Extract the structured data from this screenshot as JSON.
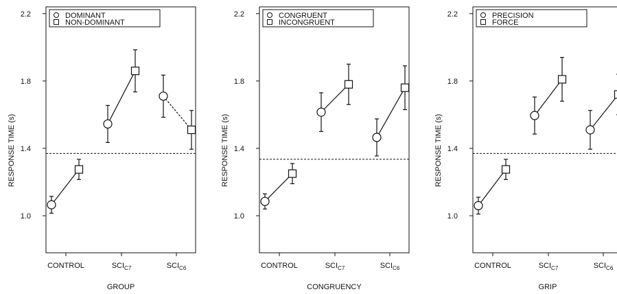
{
  "chart_data": [
    {
      "type": "scatter",
      "xlabel": "GROUP",
      "ylabel": "RESPONSE TIME (s)",
      "ylim": [
        0.78,
        2.24
      ],
      "yticks": [
        1.0,
        1.4,
        1.8,
        2.2
      ],
      "groups": [
        {
          "base": "CONTROL",
          "sub": ""
        },
        {
          "base": "SCI",
          "sub": "C7"
        },
        {
          "base": "SCI",
          "sub": "C6"
        }
      ],
      "series": [
        {
          "name": "DOMINANT",
          "marker": "circle",
          "values": [
            1.065,
            1.545,
            1.71
          ],
          "err": [
            0.05,
            0.11,
            0.125
          ]
        },
        {
          "name": "NON-DOMINANT",
          "marker": "square",
          "values": [
            1.275,
            1.86,
            1.51
          ],
          "err": [
            0.06,
            0.125,
            0.115
          ]
        }
      ],
      "connector_styles": [
        "solid",
        "solid",
        "dashed"
      ],
      "reference_line": 1.37
    },
    {
      "type": "scatter",
      "xlabel": "CONGRUENCY",
      "ylabel": "RESPONSE TIME (s)",
      "ylim": [
        0.78,
        2.24
      ],
      "yticks": [
        1.0,
        1.4,
        1.8,
        2.2
      ],
      "groups": [
        {
          "base": "CONTROL",
          "sub": ""
        },
        {
          "base": "SCI",
          "sub": "C7"
        },
        {
          "base": "SCI",
          "sub": "C6"
        }
      ],
      "series": [
        {
          "name": "CONGRUENT",
          "marker": "circle",
          "values": [
            1.085,
            1.615,
            1.465
          ],
          "err": [
            0.045,
            0.115,
            0.11
          ]
        },
        {
          "name": "INCONGRUENT",
          "marker": "square",
          "values": [
            1.25,
            1.78,
            1.76
          ],
          "err": [
            0.06,
            0.12,
            0.13
          ]
        }
      ],
      "connector_styles": [
        "solid",
        "solid",
        "solid"
      ],
      "reference_line": 1.335
    },
    {
      "type": "scatter",
      "xlabel": "GRIP",
      "ylabel": "RESPONSE TIME (s)",
      "ylim": [
        0.78,
        2.24
      ],
      "yticks": [
        1.0,
        1.4,
        1.8,
        2.2
      ],
      "groups": [
        {
          "base": "CONTROL",
          "sub": ""
        },
        {
          "base": "SCI",
          "sub": "C7"
        },
        {
          "base": "SCI",
          "sub": "C6"
        }
      ],
      "series": [
        {
          "name": "PRECISION",
          "marker": "circle",
          "values": [
            1.06,
            1.595,
            1.51
          ],
          "err": [
            0.05,
            0.11,
            0.115
          ]
        },
        {
          "name": "FORCE",
          "marker": "square",
          "values": [
            1.275,
            1.81,
            1.72
          ],
          "err": [
            0.06,
            0.13,
            0.12
          ]
        }
      ],
      "connector_styles": [
        "solid",
        "solid",
        "solid"
      ],
      "reference_line": 1.37
    }
  ]
}
